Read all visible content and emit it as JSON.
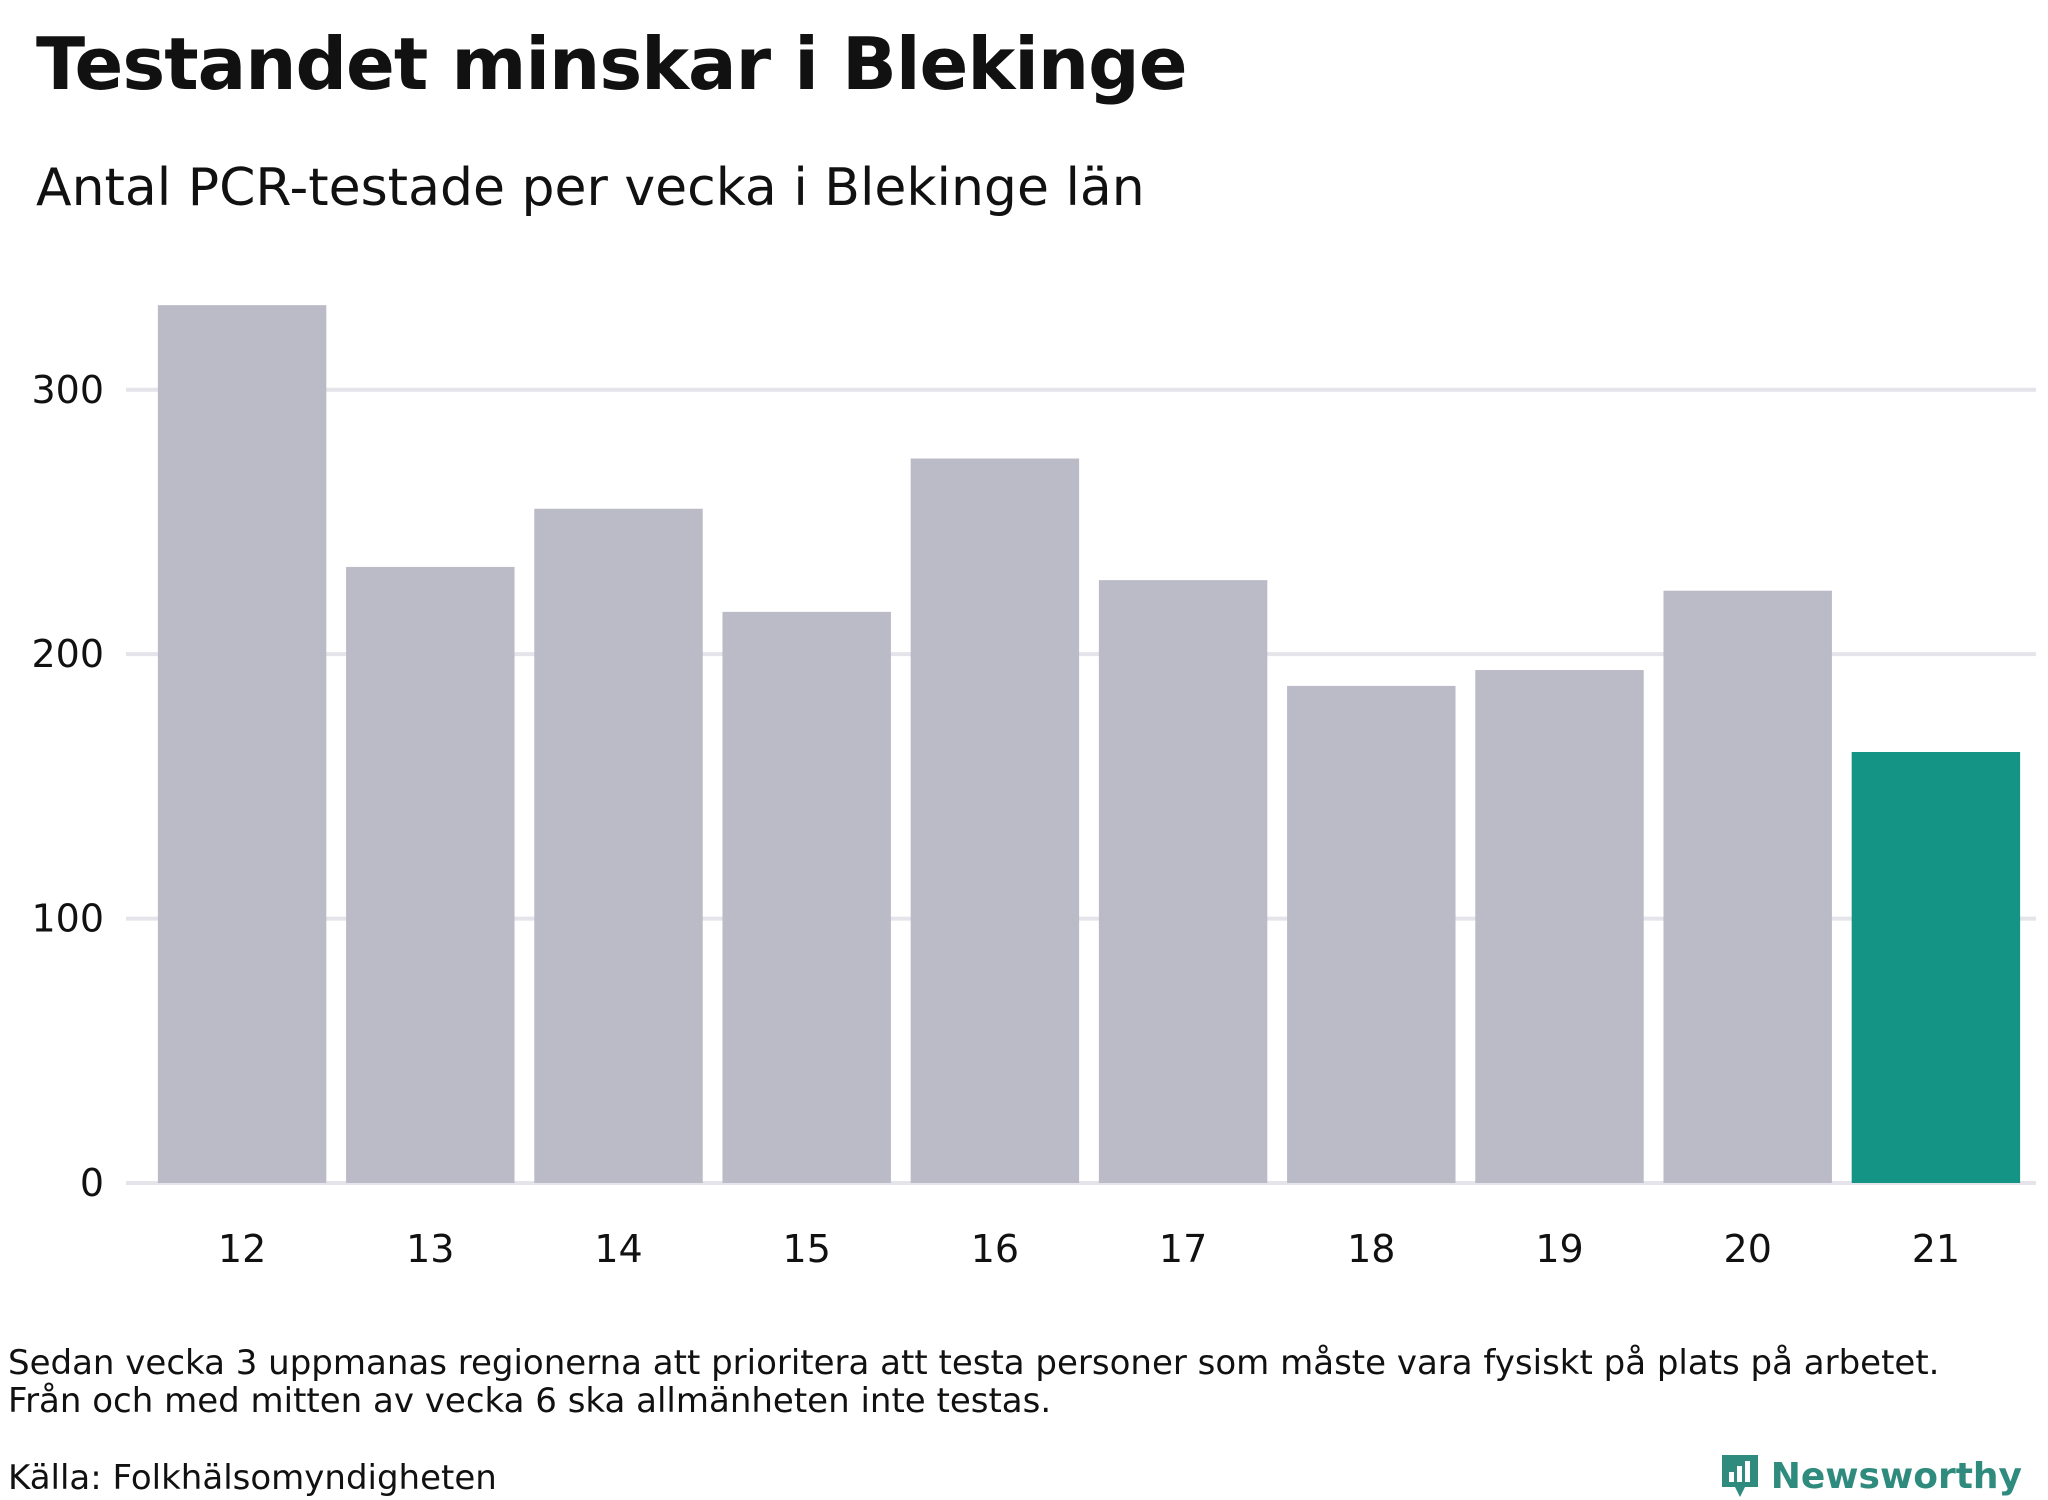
{
  "header": {
    "title": "Testandet minskar i Blekinge",
    "subtitle": "Antal PCR-testade per vecka i Blekinge län"
  },
  "footer": {
    "note_line1": "Sedan vecka 3 uppmanas regionerna att prioritera att testa personer som måste vara fysiskt på plats på arbetet.",
    "note_line2": "Från och med mitten av vecka 6 ska allmänheten inte testas.",
    "source": "Källa: Folkhälsomyndigheten",
    "brand": "Newsworthy",
    "brand_icon": "newsworthy-logo-icon"
  },
  "colors": {
    "default_bar": "#bbbac7",
    "highlight_bar": "#149485",
    "grid": "#e4e4ea",
    "brand": "#2e8b7d"
  },
  "chart_data": {
    "type": "bar",
    "title": "Testandet minskar i Blekinge",
    "subtitle": "Antal PCR-testade per vecka i Blekinge län",
    "xlabel": "",
    "ylabel": "",
    "categories": [
      "12",
      "13",
      "14",
      "15",
      "16",
      "17",
      "18",
      "19",
      "20",
      "21"
    ],
    "values": [
      332,
      233,
      255,
      216,
      274,
      228,
      188,
      194,
      224,
      163
    ],
    "highlight_category": "21",
    "ylim": [
      0,
      340
    ],
    "yticks": [
      0,
      100,
      200,
      300
    ],
    "grid": true,
    "legend": "none"
  }
}
